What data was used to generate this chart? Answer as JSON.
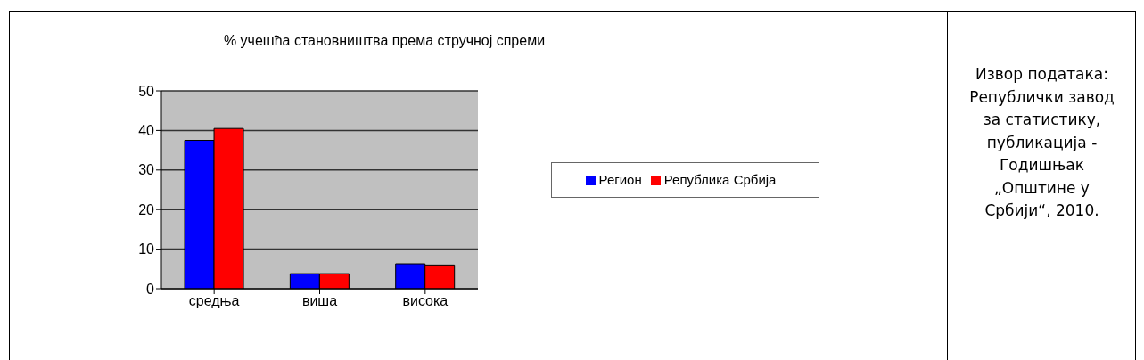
{
  "chart_data": {
    "type": "bar",
    "title": "% учешћа становништва према стручној спреми",
    "categories": [
      "средња",
      "виша",
      "висока"
    ],
    "series": [
      {
        "name": "Регион",
        "color": "#0000ff",
        "values": [
          37.5,
          3.8,
          6.3
        ]
      },
      {
        "name": "Република Србија",
        "color": "#ff0000",
        "values": [
          40.5,
          3.8,
          6.0
        ]
      }
    ],
    "ylim": [
      0,
      50
    ],
    "yticks": [
      0,
      10,
      20,
      30,
      40,
      50
    ],
    "grid": "y",
    "legend": "right",
    "annotations": [
      "Извор података: Републички завод за статистику, публикација - Годишњак „Општине у Србији“, 2010."
    ]
  }
}
